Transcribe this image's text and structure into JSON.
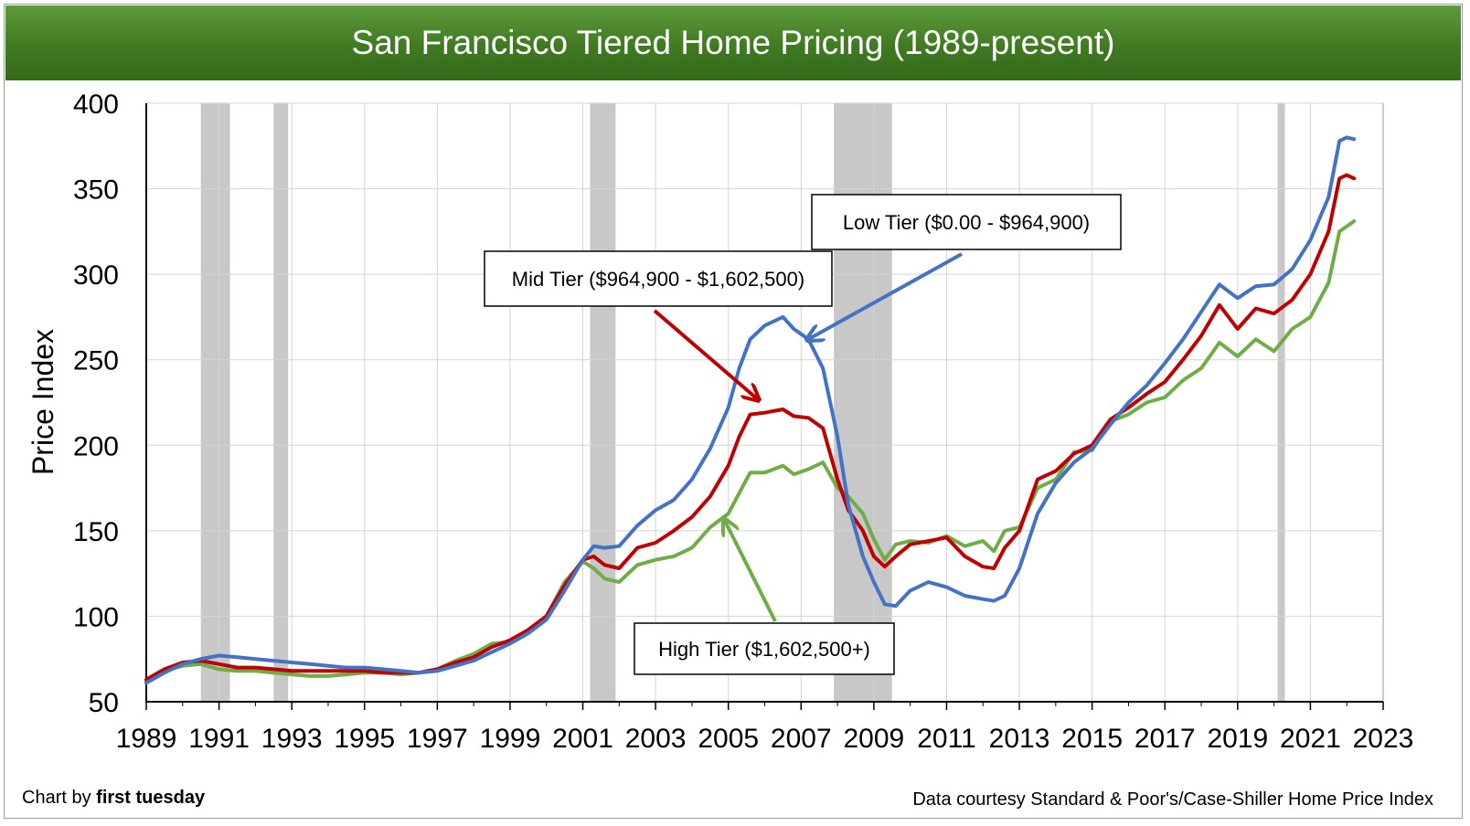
{
  "title": "San Francisco Tiered Home Pricing (1989-present)",
  "footer": {
    "credit_prefix": "Chart by",
    "credit_brand": "first tuesday",
    "source": "Data courtesy Standard & Poor's/Case-Shiller Home Price Index"
  },
  "chart_data": {
    "type": "line",
    "title": "San Francisco Tiered Home Pricing (1989-present)",
    "xlabel": "",
    "ylabel": "Price Index",
    "xlim": [
      1989,
      2023
    ],
    "ylim": [
      50,
      400
    ],
    "x_ticks": [
      "1989",
      "1991",
      "1993",
      "1995",
      "1997",
      "1999",
      "2001",
      "2003",
      "2005",
      "2007",
      "2009",
      "2011",
      "2013",
      "2015",
      "2017",
      "2019",
      "2021",
      "2023"
    ],
    "y_ticks": [
      50,
      100,
      150,
      200,
      250,
      300,
      350,
      400
    ],
    "grid": true,
    "recession_bands": [
      [
        1990.5,
        1991.3
      ],
      [
        1992.5,
        1992.9
      ],
      [
        2001.2,
        2001.9
      ],
      [
        2007.9,
        2009.5
      ],
      [
        2020.1,
        2020.3
      ]
    ],
    "series": [
      {
        "name": "Low Tier ($0.00 - $964,900)",
        "color": "#4472c4",
        "points": [
          [
            1989.0,
            61
          ],
          [
            1989.5,
            67
          ],
          [
            1990.0,
            72
          ],
          [
            1990.5,
            75
          ],
          [
            1991.0,
            77
          ],
          [
            1991.5,
            76
          ],
          [
            1992.0,
            75
          ],
          [
            1992.5,
            74
          ],
          [
            1993.0,
            73
          ],
          [
            1993.5,
            72
          ],
          [
            1994.0,
            71
          ],
          [
            1994.5,
            70
          ],
          [
            1995.0,
            70
          ],
          [
            1995.5,
            69
          ],
          [
            1996.0,
            68
          ],
          [
            1996.5,
            67
          ],
          [
            1997.0,
            68
          ],
          [
            1997.5,
            71
          ],
          [
            1998.0,
            74
          ],
          [
            1998.5,
            79
          ],
          [
            1999.0,
            84
          ],
          [
            1999.5,
            90
          ],
          [
            2000.0,
            98
          ],
          [
            2000.5,
            115
          ],
          [
            2001.0,
            133
          ],
          [
            2001.3,
            141
          ],
          [
            2001.6,
            140
          ],
          [
            2002.0,
            141
          ],
          [
            2002.5,
            153
          ],
          [
            2003.0,
            162
          ],
          [
            2003.5,
            168
          ],
          [
            2004.0,
            180
          ],
          [
            2004.5,
            198
          ],
          [
            2005.0,
            222
          ],
          [
            2005.3,
            245
          ],
          [
            2005.6,
            262
          ],
          [
            2006.0,
            270
          ],
          [
            2006.5,
            275
          ],
          [
            2006.8,
            268
          ],
          [
            2007.2,
            262
          ],
          [
            2007.6,
            245
          ],
          [
            2008.0,
            205
          ],
          [
            2008.3,
            165
          ],
          [
            2008.7,
            135
          ],
          [
            2009.0,
            120
          ],
          [
            2009.3,
            107
          ],
          [
            2009.6,
            106
          ],
          [
            2010.0,
            115
          ],
          [
            2010.5,
            120
          ],
          [
            2011.0,
            117
          ],
          [
            2011.5,
            112
          ],
          [
            2012.0,
            110
          ],
          [
            2012.3,
            109
          ],
          [
            2012.6,
            112
          ],
          [
            2013.0,
            128
          ],
          [
            2013.5,
            160
          ],
          [
            2014.0,
            178
          ],
          [
            2014.5,
            190
          ],
          [
            2015.0,
            198
          ],
          [
            2015.5,
            212
          ],
          [
            2016.0,
            225
          ],
          [
            2016.5,
            235
          ],
          [
            2017.0,
            248
          ],
          [
            2017.5,
            262
          ],
          [
            2018.0,
            278
          ],
          [
            2018.5,
            294
          ],
          [
            2019.0,
            286
          ],
          [
            2019.5,
            293
          ],
          [
            2020.0,
            294
          ],
          [
            2020.5,
            303
          ],
          [
            2021.0,
            320
          ],
          [
            2021.5,
            345
          ],
          [
            2021.8,
            378
          ],
          [
            2022.0,
            380
          ],
          [
            2022.2,
            379
          ]
        ]
      },
      {
        "name": "Mid Tier ($964,900 - $1,602,500)",
        "color": "#c00000",
        "points": [
          [
            1989.0,
            63
          ],
          [
            1989.5,
            69
          ],
          [
            1990.0,
            73
          ],
          [
            1990.5,
            74
          ],
          [
            1991.0,
            72
          ],
          [
            1991.5,
            70
          ],
          [
            1992.0,
            70
          ],
          [
            1992.5,
            69
          ],
          [
            1993.0,
            68
          ],
          [
            1993.5,
            68
          ],
          [
            1994.0,
            68
          ],
          [
            1994.5,
            68
          ],
          [
            1995.0,
            68
          ],
          [
            1995.5,
            67
          ],
          [
            1996.0,
            67
          ],
          [
            1996.5,
            67
          ],
          [
            1997.0,
            69
          ],
          [
            1997.5,
            73
          ],
          [
            1998.0,
            76
          ],
          [
            1998.5,
            82
          ],
          [
            1999.0,
            86
          ],
          [
            1999.5,
            92
          ],
          [
            2000.0,
            100
          ],
          [
            2000.5,
            118
          ],
          [
            2001.0,
            133
          ],
          [
            2001.3,
            135
          ],
          [
            2001.6,
            130
          ],
          [
            2002.0,
            128
          ],
          [
            2002.5,
            140
          ],
          [
            2003.0,
            143
          ],
          [
            2003.5,
            150
          ],
          [
            2004.0,
            158
          ],
          [
            2004.5,
            170
          ],
          [
            2005.0,
            188
          ],
          [
            2005.3,
            205
          ],
          [
            2005.6,
            218
          ],
          [
            2006.0,
            219
          ],
          [
            2006.5,
            221
          ],
          [
            2006.8,
            217
          ],
          [
            2007.2,
            216
          ],
          [
            2007.6,
            210
          ],
          [
            2008.0,
            180
          ],
          [
            2008.3,
            162
          ],
          [
            2008.7,
            150
          ],
          [
            2009.0,
            135
          ],
          [
            2009.3,
            129
          ],
          [
            2009.6,
            135
          ],
          [
            2010.0,
            142
          ],
          [
            2010.5,
            144
          ],
          [
            2011.0,
            146
          ],
          [
            2011.5,
            135
          ],
          [
            2012.0,
            129
          ],
          [
            2012.3,
            128
          ],
          [
            2012.6,
            140
          ],
          [
            2013.0,
            150
          ],
          [
            2013.5,
            180
          ],
          [
            2014.0,
            185
          ],
          [
            2014.5,
            195
          ],
          [
            2015.0,
            200
          ],
          [
            2015.5,
            215
          ],
          [
            2016.0,
            222
          ],
          [
            2016.5,
            230
          ],
          [
            2017.0,
            237
          ],
          [
            2017.5,
            250
          ],
          [
            2018.0,
            264
          ],
          [
            2018.5,
            282
          ],
          [
            2019.0,
            268
          ],
          [
            2019.5,
            280
          ],
          [
            2020.0,
            277
          ],
          [
            2020.5,
            285
          ],
          [
            2021.0,
            300
          ],
          [
            2021.5,
            325
          ],
          [
            2021.8,
            356
          ],
          [
            2022.0,
            358
          ],
          [
            2022.2,
            356
          ]
        ]
      },
      {
        "name": "High Tier ($1,602,500+)",
        "color": "#70ad47",
        "points": [
          [
            1989.0,
            62
          ],
          [
            1989.5,
            68
          ],
          [
            1990.0,
            71
          ],
          [
            1990.5,
            72
          ],
          [
            1991.0,
            69
          ],
          [
            1991.5,
            68
          ],
          [
            1992.0,
            68
          ],
          [
            1992.5,
            67
          ],
          [
            1993.0,
            66
          ],
          [
            1993.5,
            65
          ],
          [
            1994.0,
            65
          ],
          [
            1994.5,
            66
          ],
          [
            1995.0,
            67
          ],
          [
            1995.5,
            67
          ],
          [
            1996.0,
            66
          ],
          [
            1996.5,
            67
          ],
          [
            1997.0,
            69
          ],
          [
            1997.5,
            74
          ],
          [
            1998.0,
            78
          ],
          [
            1998.5,
            84
          ],
          [
            1999.0,
            85
          ],
          [
            1999.5,
            92
          ],
          [
            2000.0,
            100
          ],
          [
            2000.5,
            120
          ],
          [
            2001.0,
            132
          ],
          [
            2001.3,
            128
          ],
          [
            2001.6,
            122
          ],
          [
            2002.0,
            120
          ],
          [
            2002.5,
            130
          ],
          [
            2003.0,
            133
          ],
          [
            2003.5,
            135
          ],
          [
            2004.0,
            140
          ],
          [
            2004.5,
            152
          ],
          [
            2005.0,
            160
          ],
          [
            2005.3,
            172
          ],
          [
            2005.6,
            184
          ],
          [
            2006.0,
            184
          ],
          [
            2006.5,
            188
          ],
          [
            2006.8,
            183
          ],
          [
            2007.2,
            186
          ],
          [
            2007.6,
            190
          ],
          [
            2008.0,
            175
          ],
          [
            2008.3,
            170
          ],
          [
            2008.7,
            160
          ],
          [
            2009.0,
            145
          ],
          [
            2009.3,
            133
          ],
          [
            2009.6,
            142
          ],
          [
            2010.0,
            144
          ],
          [
            2010.5,
            143
          ],
          [
            2011.0,
            147
          ],
          [
            2011.5,
            141
          ],
          [
            2012.0,
            144
          ],
          [
            2012.3,
            138
          ],
          [
            2012.6,
            150
          ],
          [
            2013.0,
            152
          ],
          [
            2013.5,
            175
          ],
          [
            2014.0,
            180
          ],
          [
            2014.5,
            196
          ],
          [
            2015.0,
            197
          ],
          [
            2015.5,
            214
          ],
          [
            2016.0,
            218
          ],
          [
            2016.5,
            225
          ],
          [
            2017.0,
            228
          ],
          [
            2017.5,
            238
          ],
          [
            2018.0,
            245
          ],
          [
            2018.5,
            260
          ],
          [
            2019.0,
            252
          ],
          [
            2019.5,
            262
          ],
          [
            2020.0,
            255
          ],
          [
            2020.5,
            268
          ],
          [
            2021.0,
            275
          ],
          [
            2021.5,
            295
          ],
          [
            2021.8,
            325
          ],
          [
            2022.0,
            328
          ],
          [
            2022.2,
            331
          ]
        ]
      }
    ],
    "annotations": [
      {
        "text": "Low Tier ($0.00 - $964,900)",
        "series": 0,
        "arrow_to": [
          2007.2,
          262
        ]
      },
      {
        "text": "Mid Tier ($964,900 - $1,602,500)",
        "series": 1,
        "arrow_to": [
          2005.8,
          227
        ]
      },
      {
        "text": "High Tier ($1,602,500+)",
        "series": 2,
        "arrow_to": [
          2004.9,
          156
        ]
      }
    ]
  }
}
